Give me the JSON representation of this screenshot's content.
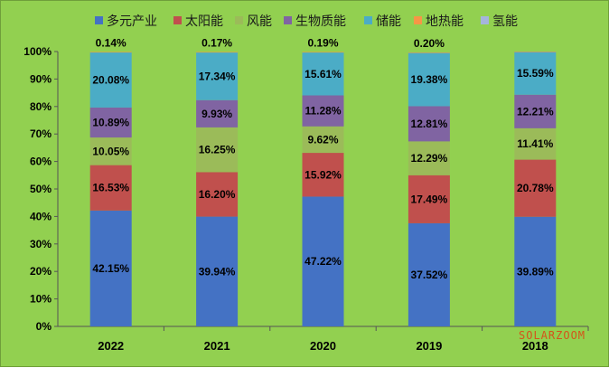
{
  "chart_data": {
    "type": "bar",
    "stacked": true,
    "title": "",
    "xlabel": "",
    "ylabel": "",
    "ylim": [
      0,
      100
    ],
    "yticks": [
      "0%",
      "10%",
      "20%",
      "30%",
      "40%",
      "50%",
      "60%",
      "70%",
      "80%",
      "90%",
      "100%"
    ],
    "categories": [
      "2022",
      "2021",
      "2020",
      "2019",
      "2018"
    ],
    "legend_position": "top",
    "grid": false,
    "series": [
      {
        "name": "多元产业",
        "color": "#4472c4",
        "values": [
          42.15,
          39.94,
          47.22,
          37.52,
          39.89
        ],
        "labels": [
          "42.15%",
          "39.94%",
          "47.22%",
          "37.52%",
          "39.89%"
        ]
      },
      {
        "name": "太阳能",
        "color": "#c0504d",
        "values": [
          16.53,
          16.2,
          15.92,
          17.49,
          20.78
        ],
        "labels": [
          "16.53%",
          "16.20%",
          "15.92%",
          "17.49%",
          "20.78%"
        ]
      },
      {
        "name": "风能",
        "color": "#9bbb59",
        "values": [
          10.05,
          16.25,
          9.62,
          12.29,
          11.41
        ],
        "labels": [
          "10.05%",
          "16.25%",
          "9.62%",
          "12.29%",
          "11.41%"
        ]
      },
      {
        "name": "生物质能",
        "color": "#8064a2",
        "values": [
          10.89,
          9.93,
          11.28,
          12.81,
          12.21
        ],
        "labels": [
          "10.89%",
          "9.93%",
          "11.28%",
          "12.81%",
          "12.21%"
        ]
      },
      {
        "name": "储能",
        "color": "#4bacc6",
        "values": [
          20.08,
          17.34,
          15.61,
          19.38,
          15.59
        ],
        "labels": [
          "20.08%",
          "17.34%",
          "15.61%",
          "19.38%",
          "15.59%"
        ]
      },
      {
        "name": "地热能",
        "color": "#f79646",
        "values": [
          0.14,
          0.17,
          0.19,
          0.2,
          0.12
        ],
        "labels": [
          "0.14%",
          "0.17%",
          "0.19%",
          "0.20%",
          ""
        ]
      },
      {
        "name": "氢能",
        "color": "#a5b5dc",
        "values": [
          0,
          0,
          0,
          0,
          0
        ],
        "labels": [
          "",
          "",
          "",
          "",
          ""
        ]
      }
    ]
  },
  "watermark": "SOLARZOOM"
}
